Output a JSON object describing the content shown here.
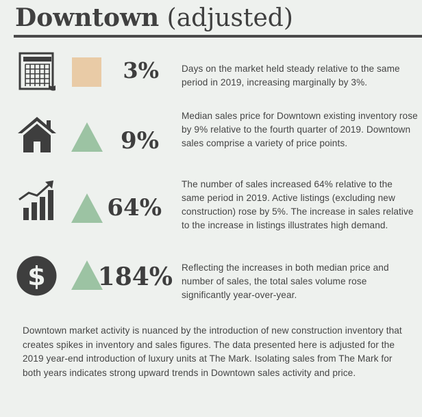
{
  "header": {
    "title_strong": "Downtown",
    "title_light": "(adjusted)"
  },
  "colors": {
    "square": "#e9cba6",
    "triangle": "#9cc3a3",
    "icon": "#3e3e3e"
  },
  "rows": [
    {
      "icon": "calendar-icon",
      "marker": "square",
      "percent": "3%",
      "description": "Days on the market held steady relative to the same period in 2019, increasing marginally by 3%."
    },
    {
      "icon": "house-icon",
      "marker": "triangle-up",
      "percent": "9%",
      "description": "Median sales price for Downtown existing inventory rose by 9% relative to the fourth quarter of 2019. Downtown sales comprise a variety of price points."
    },
    {
      "icon": "bar-chart-trend-icon",
      "marker": "triangle-up",
      "percent": "64%",
      "description": "The number of sales increased 64% relative to the same period in 2019. Active listings (excluding new construction) rose by 5%. The increase in sales relative to the increase in listings illustrates high demand."
    },
    {
      "icon": "dollar-icon",
      "marker": "triangle-up",
      "percent": "184%",
      "description": "Reflecting the increases in both median price and number of sales, the total sales volume rose significantly year-over-year."
    }
  ],
  "footer": {
    "text": "Downtown market activity is nuanced by the introduction of new construction inventory that creates spikes in inventory and sales figures. The data presented here is adjusted for the 2019 year-end introduction of luxury units at The Mark. Isolating sales from The Mark for both years indicates strong upward trends in Downtown  sales activity and price."
  }
}
